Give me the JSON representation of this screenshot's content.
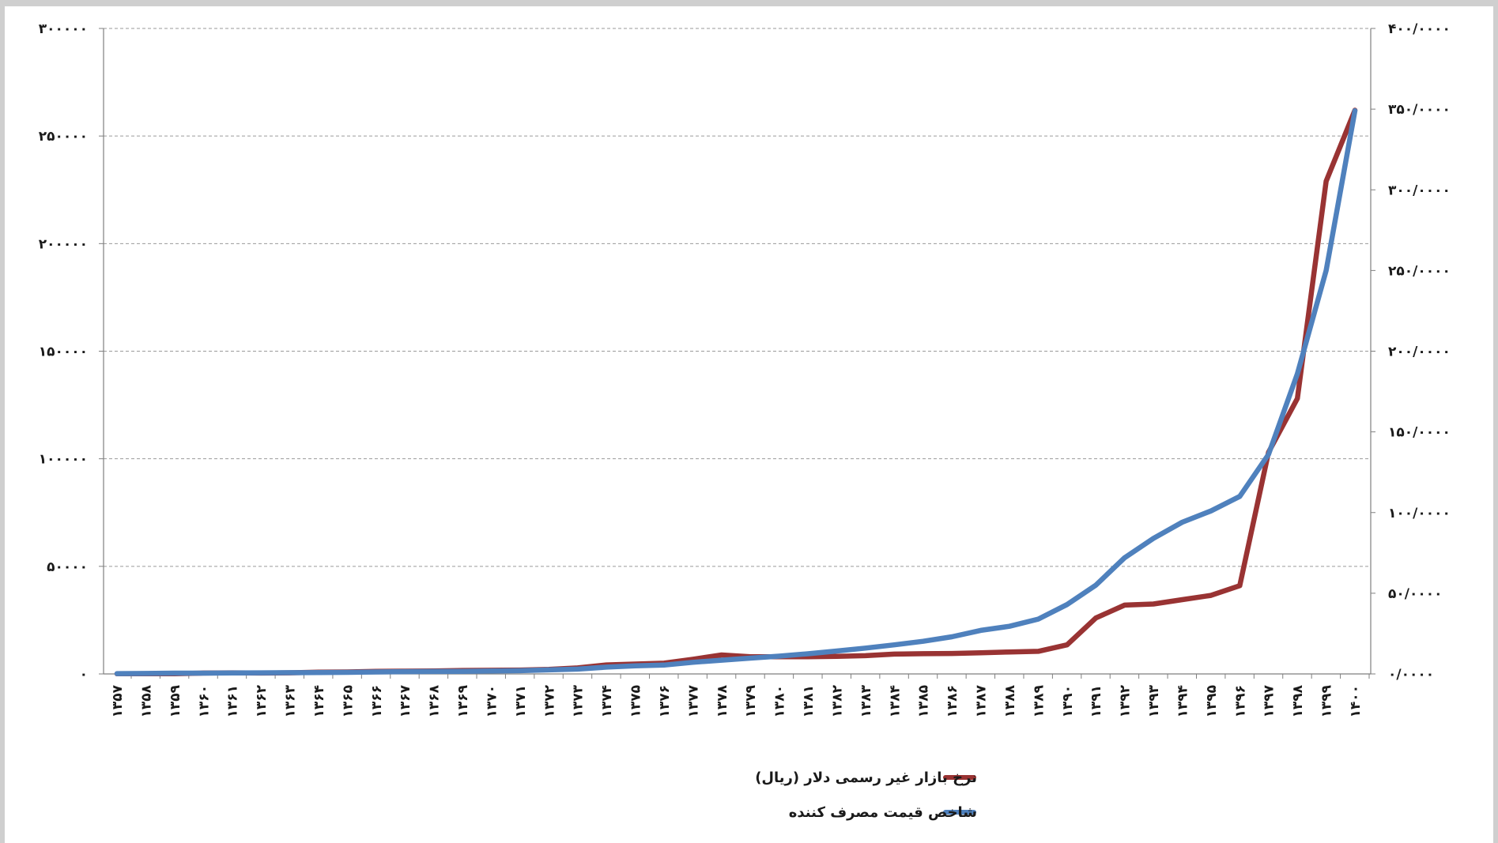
{
  "chart_data": {
    "type": "line",
    "x": [
      "۱۳۵۷",
      "۱۳۵۸",
      "۱۳۵۹",
      "۱۳۶۰",
      "۱۳۶۱",
      "۱۳۶۲",
      "۱۳۶۳",
      "۱۳۶۴",
      "۱۳۶۵",
      "۱۳۶۶",
      "۱۳۶۷",
      "۱۳۶۸",
      "۱۳۶۹",
      "۱۳۷۰",
      "۱۳۷۱",
      "۱۳۷۲",
      "۱۳۷۳",
      "۱۳۷۴",
      "۱۳۷۵",
      "۱۳۷۶",
      "۱۳۷۷",
      "۱۳۷۸",
      "۱۳۷۹",
      "۱۳۸۰",
      "۱۳۸۱",
      "۱۳۸۲",
      "۱۳۸۳",
      "۱۳۸۴",
      "۱۳۸۵",
      "۱۳۸۶",
      "۱۳۸۷",
      "۱۳۸۸",
      "۱۳۸۹",
      "۱۳۹۰",
      "۱۳۹۱",
      "۱۳۹۲",
      "۱۳۹۳",
      "۱۳۹۴",
      "۱۳۹۵",
      "۱۳۹۶",
      "۱۳۹۷",
      "۱۳۹۸",
      "۱۳۹۹",
      "۱۴۰۰"
    ],
    "series": [
      {
        "name": "نرخ بازار غیر رسمی دلار (ریال)",
        "axis": "left",
        "color": "#993333",
        "values": [
          70,
          80,
          100,
          400,
          500,
          400,
          500,
          800,
          900,
          1200,
          1300,
          1400,
          1600,
          1700,
          1800,
          2100,
          2800,
          4200,
          4600,
          5000,
          6800,
          8800,
          8000,
          8000,
          8000,
          8200,
          8500,
          9200,
          9400,
          9500,
          9800,
          10200,
          10500,
          13500,
          26000,
          32000,
          32500,
          34500,
          36500,
          41000,
          103000,
          128000,
          229000,
          262000
        ]
      },
      {
        "name": "شاخص قیمت مصرف کننده",
        "axis": "right",
        "color": "#4f81bd",
        "values": [
          0.2,
          0.3,
          0.5,
          0.5,
          0.6,
          0.7,
          0.8,
          0.9,
          1.0,
          1.2,
          1.4,
          1.5,
          1.6,
          1.8,
          2.0,
          2.5,
          3.0,
          4.2,
          5.0,
          5.5,
          7.2,
          8.5,
          9.8,
          11.0,
          12.5,
          14.2,
          16.0,
          18.0,
          20.2,
          23.0,
          27.0,
          29.5,
          34.0,
          43.0,
          55.0,
          72.0,
          84.0,
          94.0,
          101.0,
          110.0,
          136.0,
          186.0,
          250.0,
          349.0
        ]
      }
    ],
    "y_left": {
      "ylim": [
        0,
        300000
      ],
      "ticks": [
        0,
        50000,
        100000,
        150000,
        200000,
        250000,
        300000
      ],
      "tick_labels": [
        "۰",
        "۵۰۰۰۰",
        "۱۰۰۰۰۰",
        "۱۵۰۰۰۰",
        "۲۰۰۰۰۰",
        "۲۵۰۰۰۰",
        "۳۰۰۰۰۰"
      ]
    },
    "y_right": {
      "ylim": [
        0,
        400
      ],
      "ticks": [
        0,
        50,
        100,
        150,
        200,
        250,
        300,
        350,
        400
      ],
      "tick_labels": [
        "۰/۰۰۰۰",
        "۵۰/۰۰۰۰",
        "۱۰۰/۰۰۰۰",
        "۱۵۰/۰۰۰۰",
        "۲۰۰/۰۰۰۰",
        "۲۵۰/۰۰۰۰",
        "۳۰۰/۰۰۰۰",
        "۳۵۰/۰۰۰۰",
        "۴۰۰/۰۰۰۰"
      ]
    },
    "title": "",
    "xlabel": "",
    "ylabel": "",
    "grid": "horizontal dashed",
    "legend_position": "bottom-right",
    "legend": [
      {
        "label": "نرخ بازار غیر رسمی دلار (ریال)",
        "color": "#993333"
      },
      {
        "label": "شاخص قیمت مصرف کننده",
        "color": "#4f81bd"
      }
    ]
  }
}
